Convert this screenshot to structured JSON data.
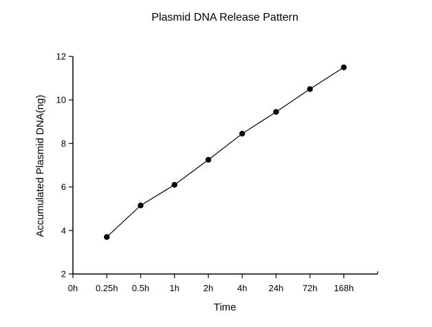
{
  "chart_data": {
    "type": "line",
    "title": "Plasmid DNA Release Pattern",
    "xlabel": "Time",
    "ylabel": "Accumulated Plasmid DNA(ng)",
    "categories": [
      "0h",
      "0.25h",
      "0.5h",
      "1h",
      "2h",
      "4h",
      "24h",
      "72h",
      "168h"
    ],
    "series": [
      {
        "marker": "filled-circle",
        "values": [
          null,
          3.7,
          5.15,
          6.1,
          7.25,
          8.45,
          9.45,
          10.5,
          11.5
        ]
      }
    ],
    "ylim": [
      2,
      12
    ],
    "yticks": [
      2,
      4,
      6,
      8,
      10,
      12
    ],
    "grid": false,
    "legend": false,
    "colors": {
      "line": "#000000",
      "marker": "#000000",
      "axis": "#000000",
      "text": "#000000",
      "background": "#ffffff"
    }
  }
}
